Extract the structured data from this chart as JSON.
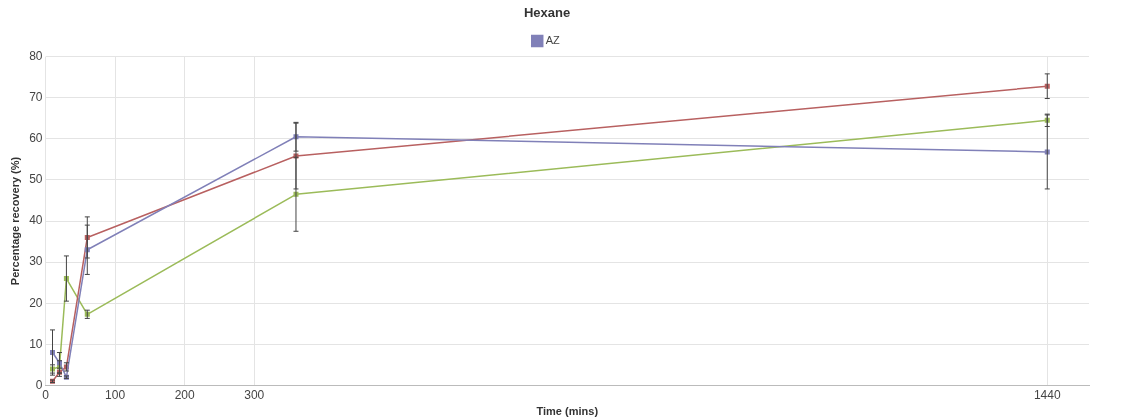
{
  "chart_data": {
    "type": "line",
    "title": "Hexane",
    "xlabel": "Time (mins)",
    "ylabel": "Percentage recovery (%)",
    "x": [
      10,
      20,
      30,
      60,
      360,
      1440
    ],
    "series": [
      {
        "name": "AZ",
        "color": "#8080b8",
        "values": [
          8,
          5.5,
          2,
          33,
          60.5,
          56.8
        ],
        "errors": [
          5.5,
          2.5,
          0.3,
          6,
          3.5,
          9
        ]
      },
      {
        "color": "#b86060",
        "values": [
          1,
          3.2,
          4.5,
          36,
          55.8,
          72.8
        ],
        "errors": [
          0.3,
          1,
          1,
          5,
          8,
          3
        ]
      },
      {
        "color": "#9bbb59",
        "values": [
          4,
          4.5,
          26,
          17.3,
          46.5,
          64.5
        ],
        "errors": [
          1,
          1.5,
          5.5,
          1,
          9,
          1.5
        ]
      }
    ],
    "xlim": [
      0,
      1500
    ],
    "xticks": [
      0,
      100,
      200,
      300,
      1440
    ],
    "ylim": [
      0,
      80
    ],
    "yticks": [
      0,
      10,
      20,
      30,
      40,
      50,
      60,
      70,
      80
    ],
    "grid": true,
    "legend": "top",
    "marker": "square",
    "line_style": "solid"
  }
}
